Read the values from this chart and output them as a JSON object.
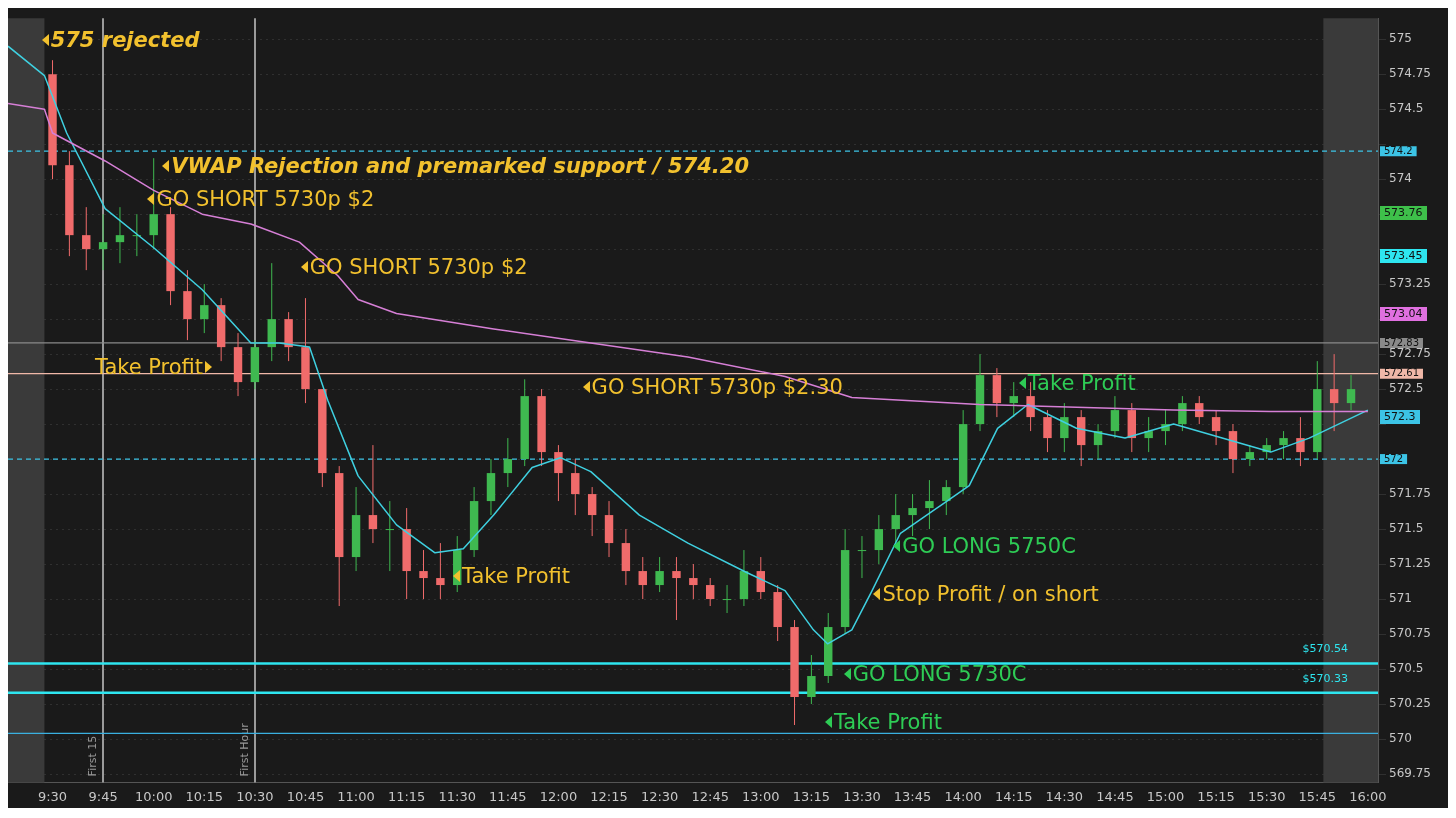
{
  "chart_data": {
    "type": "candlestick",
    "x": [
      9.5,
      9.5833,
      9.6667,
      9.75,
      9.8333,
      9.9167,
      10,
      10.0833,
      10.1667,
      10.25,
      10.3333,
      10.4167,
      10.5,
      10.5833,
      10.6667,
      10.75,
      10.8333,
      10.9167,
      11,
      11.0833,
      11.1667,
      11.25,
      11.3333,
      11.4167,
      11.5,
      11.5833,
      11.6667,
      11.75,
      11.8333,
      11.9167,
      12,
      12.0833,
      12.1667,
      12.25,
      12.3333,
      12.4167,
      12.5,
      12.5833,
      12.6667,
      12.75,
      12.8333,
      12.9167,
      13,
      13.0833,
      13.1667,
      13.25,
      13.3333,
      13.4167,
      13.5,
      13.5833,
      13.6667,
      13.75,
      13.8333,
      13.9167,
      14,
      14.0833,
      14.1667,
      14.25,
      14.3333,
      14.4167,
      14.5,
      14.5833,
      14.6667,
      14.75,
      14.8333,
      14.9167,
      15,
      15.0833,
      15.1667,
      15.25,
      15.3333,
      15.4167,
      15.5,
      15.5833,
      15.6667,
      15.75,
      15.8333,
      15.9167
    ],
    "ohlc": [
      [
        574.75,
        574.85,
        574.0,
        574.1
      ],
      [
        574.1,
        574.2,
        573.45,
        573.6
      ],
      [
        573.6,
        573.8,
        573.35,
        573.5
      ],
      [
        573.5,
        573.75,
        573.35,
        573.55
      ],
      [
        573.55,
        573.8,
        573.4,
        573.6
      ],
      [
        573.6,
        573.75,
        573.45,
        573.6
      ],
      [
        573.6,
        574.15,
        573.5,
        573.75
      ],
      [
        573.75,
        573.8,
        573.1,
        573.2
      ],
      [
        573.2,
        573.35,
        572.85,
        573.0
      ],
      [
        573.0,
        573.25,
        572.9,
        573.1
      ],
      [
        573.1,
        573.15,
        572.7,
        572.8
      ],
      [
        572.8,
        572.9,
        572.45,
        572.55
      ],
      [
        572.55,
        572.85,
        572.5,
        572.8
      ],
      [
        572.8,
        573.4,
        572.7,
        573.0
      ],
      [
        573.0,
        573.05,
        572.7,
        572.8
      ],
      [
        572.8,
        573.15,
        572.4,
        572.5
      ],
      [
        572.5,
        572.5,
        571.8,
        571.9
      ],
      [
        571.9,
        571.95,
        570.95,
        571.3
      ],
      [
        571.3,
        571.8,
        571.2,
        571.6
      ],
      [
        571.6,
        572.1,
        571.4,
        571.5
      ],
      [
        571.5,
        571.7,
        571.2,
        571.5
      ],
      [
        571.5,
        571.65,
        571.0,
        571.2
      ],
      [
        571.2,
        571.35,
        571.0,
        571.15
      ],
      [
        571.15,
        571.4,
        571.0,
        571.1
      ],
      [
        571.1,
        571.45,
        571.05,
        571.35
      ],
      [
        571.35,
        571.8,
        571.3,
        571.7
      ],
      [
        571.7,
        572.0,
        571.6,
        571.9
      ],
      [
        571.9,
        572.15,
        571.8,
        572.0
      ],
      [
        572.0,
        572.57,
        571.95,
        572.45
      ],
      [
        572.45,
        572.5,
        571.95,
        572.05
      ],
      [
        572.05,
        572.1,
        571.7,
        571.9
      ],
      [
        571.9,
        572.0,
        571.6,
        571.75
      ],
      [
        571.75,
        571.8,
        571.45,
        571.6
      ],
      [
        571.6,
        571.7,
        571.3,
        571.4
      ],
      [
        571.4,
        571.5,
        571.1,
        571.2
      ],
      [
        571.2,
        571.3,
        571.0,
        571.1
      ],
      [
        571.1,
        571.3,
        571.05,
        571.2
      ],
      [
        571.2,
        571.3,
        570.85,
        571.15
      ],
      [
        571.15,
        571.25,
        571.0,
        571.1
      ],
      [
        571.1,
        571.15,
        570.95,
        571.0
      ],
      [
        571.0,
        571.1,
        570.9,
        571.0
      ],
      [
        571.0,
        571.35,
        570.95,
        571.2
      ],
      [
        571.2,
        571.3,
        571.0,
        571.05
      ],
      [
        571.05,
        571.1,
        570.7,
        570.8
      ],
      [
        570.8,
        570.85,
        570.1,
        570.3
      ],
      [
        570.3,
        570.6,
        570.25,
        570.45
      ],
      [
        570.45,
        570.9,
        570.4,
        570.8
      ],
      [
        570.8,
        571.5,
        570.75,
        571.35
      ],
      [
        571.35,
        571.45,
        571.15,
        571.35
      ],
      [
        571.35,
        571.6,
        571.25,
        571.5
      ],
      [
        571.5,
        571.75,
        571.4,
        571.6
      ],
      [
        571.6,
        571.75,
        571.45,
        571.65
      ],
      [
        571.65,
        571.85,
        571.5,
        571.7
      ],
      [
        571.7,
        571.85,
        571.6,
        571.8
      ],
      [
        571.8,
        572.35,
        571.75,
        572.25
      ],
      [
        572.25,
        572.75,
        572.2,
        572.6
      ],
      [
        572.6,
        572.65,
        572.3,
        572.4
      ],
      [
        572.4,
        572.55,
        572.3,
        572.45
      ],
      [
        572.45,
        572.55,
        572.2,
        572.3
      ],
      [
        572.3,
        572.35,
        572.05,
        572.15
      ],
      [
        572.15,
        572.4,
        572.05,
        572.3
      ],
      [
        572.3,
        572.35,
        571.95,
        572.1
      ],
      [
        572.1,
        572.25,
        572.0,
        572.2
      ],
      [
        572.2,
        572.45,
        572.15,
        572.35
      ],
      [
        572.35,
        572.4,
        572.05,
        572.15
      ],
      [
        572.15,
        572.3,
        572.05,
        572.2
      ],
      [
        572.2,
        572.35,
        572.1,
        572.25
      ],
      [
        572.25,
        572.45,
        572.2,
        572.4
      ],
      [
        572.4,
        572.45,
        572.25,
        572.3
      ],
      [
        572.3,
        572.35,
        572.1,
        572.2
      ],
      [
        572.2,
        572.25,
        571.9,
        572.0
      ],
      [
        572.0,
        572.1,
        571.95,
        572.05
      ],
      [
        572.05,
        572.15,
        572.0,
        572.1
      ],
      [
        572.1,
        572.2,
        572.0,
        572.15
      ],
      [
        572.15,
        572.3,
        571.95,
        572.05
      ],
      [
        572.05,
        572.7,
        572.0,
        572.5
      ],
      [
        572.5,
        572.75,
        572.2,
        572.4
      ],
      [
        572.4,
        572.6,
        572.35,
        572.5
      ]
    ],
    "series": [
      {
        "type": "line",
        "color": "#d67fd6",
        "x": [
          9.28,
          9.46,
          9.5,
          9.76,
          10.0,
          10.24,
          10.48,
          10.72,
          10.91,
          11.01,
          11.2,
          11.68,
          12.16,
          12.64,
          13.12,
          13.45,
          14.08,
          14.56,
          15.04,
          15.52,
          16.0
        ],
        "values": [
          574.54,
          574.5,
          574.33,
          574.13,
          573.92,
          573.75,
          573.68,
          573.55,
          573.31,
          573.14,
          573.04,
          572.93,
          572.83,
          572.73,
          572.59,
          572.44,
          572.39,
          572.37,
          572.35,
          572.34,
          572.34
        ]
      },
      {
        "type": "line",
        "color": "#3fd0e0",
        "x": [
          9.28,
          9.46,
          9.57,
          9.76,
          10.0,
          10.24,
          10.48,
          10.62,
          10.77,
          10.86,
          11.01,
          11.2,
          11.39,
          11.53,
          11.68,
          11.87,
          12.01,
          12.16,
          12.4,
          12.64,
          12.93,
          13.12,
          13.26,
          13.33,
          13.45,
          13.55,
          13.69,
          13.89,
          14.03,
          14.17,
          14.32,
          14.56,
          14.8,
          15.04,
          15.28,
          15.52,
          15.71,
          16.0
        ],
        "values": [
          574.95,
          574.74,
          574.33,
          573.79,
          573.51,
          573.21,
          572.83,
          572.83,
          572.8,
          572.42,
          571.88,
          571.53,
          571.33,
          571.36,
          571.6,
          571.94,
          572.01,
          571.91,
          571.6,
          571.4,
          571.19,
          571.06,
          570.78,
          570.68,
          570.78,
          571.06,
          571.47,
          571.67,
          571.81,
          572.22,
          572.39,
          572.22,
          572.15,
          572.25,
          572.15,
          572.05,
          572.15,
          572.35
        ]
      }
    ],
    "xlim": [
      9.28,
      16.05
    ],
    "xticks": [
      {
        "value": 9.5,
        "label": "9:30"
      },
      {
        "value": 9.75,
        "label": "9:45"
      },
      {
        "value": 10,
        "label": "10:00"
      },
      {
        "value": 10.25,
        "label": "10:15"
      },
      {
        "value": 10.5,
        "label": "10:30"
      },
      {
        "value": 10.75,
        "label": "10:45"
      },
      {
        "value": 11,
        "label": "11:00"
      },
      {
        "value": 11.25,
        "label": "11:15"
      },
      {
        "value": 11.5,
        "label": "11:30"
      },
      {
        "value": 11.75,
        "label": "11:45"
      },
      {
        "value": 12,
        "label": "12:00"
      },
      {
        "value": 12.25,
        "label": "12:15"
      },
      {
        "value": 12.5,
        "label": "12:30"
      },
      {
        "value": 12.75,
        "label": "12:45"
      },
      {
        "value": 13,
        "label": "13:00"
      },
      {
        "value": 13.25,
        "label": "13:15"
      },
      {
        "value": 13.5,
        "label": "13:30"
      },
      {
        "value": 13.75,
        "label": "13:45"
      },
      {
        "value": 14,
        "label": "14:00"
      },
      {
        "value": 14.25,
        "label": "14:15"
      },
      {
        "value": 14.5,
        "label": "14:30"
      },
      {
        "value": 14.75,
        "label": "14:45"
      },
      {
        "value": 15,
        "label": "15:00"
      },
      {
        "value": 15.25,
        "label": "15:15"
      },
      {
        "value": 15.5,
        "label": "15:30"
      },
      {
        "value": 15.75,
        "label": "15:45"
      },
      {
        "value": 16,
        "label": "16:00"
      }
    ],
    "ylim": [
      569.69,
      575.15
    ],
    "yticks": [
      569.75,
      570,
      570.25,
      570.5,
      570.75,
      571,
      571.25,
      571.5,
      571.75,
      {
        "value": 572,
        "label": null
      },
      {
        "value": 572.25,
        "label": null
      },
      572.5,
      572.75,
      {
        "value": 573,
        "label": null
      },
      573.25,
      {
        "value": 573.5,
        "label": null
      },
      {
        "value": 573.75,
        "label": null
      },
      574,
      {
        "value": 574.25,
        "label": null
      },
      574.5,
      574.75,
      575
    ],
    "grid": "y",
    "legend": false,
    "bands": [
      {
        "axis": "x",
        "from": 9.28,
        "to": 9.46,
        "color": "#3a3a3a"
      },
      {
        "axis": "x",
        "from": 15.78,
        "to": 16.05,
        "color": "#3a3a3a"
      }
    ],
    "ref_lines": [
      {
        "axis": "x",
        "value": 9.75,
        "label": "First 15",
        "color": "#9a9a9a",
        "line_style": "solid"
      },
      {
        "axis": "x",
        "value": 10.5,
        "label": "First Hour",
        "color": "#9a9a9a",
        "line_style": "solid"
      },
      {
        "axis": "y",
        "value": 574.2,
        "label": "574.2",
        "color": "#3cc4e6",
        "line_style": "dashed"
      },
      {
        "axis": "y",
        "value": 572,
        "label": "572",
        "color": "#3cc4e6",
        "line_style": "dashed"
      },
      {
        "axis": "y",
        "value": 572.83,
        "label": "572.83",
        "color": "#8a8a8a",
        "line_style": "solid"
      },
      {
        "axis": "y",
        "value": 572.61,
        "label": "572.61",
        "color": "#f0b8a8",
        "line_style": "solid"
      },
      {
        "axis": "y",
        "value": 570.54,
        "label": "$570.54",
        "color": "#2ee6f0",
        "line_style": "solid"
      },
      {
        "axis": "y",
        "value": 570.33,
        "label": "$570.33",
        "color": "#2ee6f0",
        "line_style": "solid"
      },
      {
        "axis": "y",
        "value": 570.04,
        "color": "#3ab0e0",
        "line_style": "solid"
      }
    ],
    "annotations": [
      "575 rejected",
      "VWAP Rejection and premarked support / 574.20",
      "GO SHORT 5730p $2",
      "GO SHORT 5730p $2",
      "Take Profit",
      "GO SHORT 5730p $2.30",
      "Take Profit",
      "Take Profit",
      "GO LONG 5750C",
      "Stop Profit / on short",
      "GO LONG 5730C",
      "Take Profit",
      "573.76",
      "573.45",
      "573.04",
      "572.3"
    ]
  }
}
